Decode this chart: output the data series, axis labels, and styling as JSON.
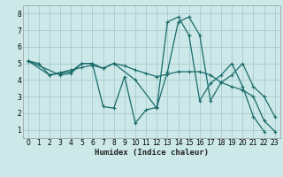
{
  "xlabel": "Humidex (Indice chaleur)",
  "background_color": "#cce8e8",
  "grid_color": "#aacccc",
  "line_color": "#1a6b6b",
  "xlim": [
    -0.5,
    23.5
  ],
  "ylim": [
    0.5,
    8.5
  ],
  "xticks": [
    0,
    1,
    2,
    3,
    4,
    5,
    6,
    7,
    8,
    9,
    10,
    11,
    12,
    13,
    14,
    15,
    16,
    17,
    18,
    19,
    20,
    21,
    22,
    23
  ],
  "yticks": [
    1,
    2,
    3,
    4,
    5,
    6,
    7,
    8
  ],
  "line1": [
    [
      0,
      5.15
    ],
    [
      1,
      5.0
    ],
    [
      2,
      4.3
    ],
    [
      3,
      4.4
    ],
    [
      4,
      4.5
    ],
    [
      5,
      5.0
    ],
    [
      6,
      5.0
    ],
    [
      7,
      2.4
    ],
    [
      8,
      2.3
    ],
    [
      9,
      4.2
    ],
    [
      10,
      1.4
    ],
    [
      11,
      2.2
    ],
    [
      12,
      2.35
    ],
    [
      13,
      4.5
    ],
    [
      14,
      7.5
    ],
    [
      15,
      7.8
    ],
    [
      16,
      6.7
    ],
    [
      17,
      2.75
    ],
    [
      18,
      3.85
    ],
    [
      19,
      4.3
    ],
    [
      20,
      5.0
    ],
    [
      21,
      3.6
    ],
    [
      22,
      3.0
    ],
    [
      23,
      1.8
    ]
  ],
  "line2": [
    [
      0,
      5.15
    ],
    [
      2,
      4.3
    ],
    [
      3,
      4.45
    ],
    [
      4,
      4.6
    ],
    [
      5,
      4.75
    ],
    [
      6,
      4.9
    ],
    [
      7,
      4.7
    ],
    [
      8,
      5.0
    ],
    [
      9,
      4.85
    ],
    [
      10,
      4.6
    ],
    [
      11,
      4.4
    ],
    [
      12,
      4.2
    ],
    [
      13,
      4.35
    ],
    [
      14,
      4.5
    ],
    [
      15,
      4.5
    ],
    [
      16,
      4.5
    ],
    [
      17,
      4.3
    ],
    [
      18,
      3.85
    ],
    [
      19,
      3.6
    ],
    [
      20,
      3.4
    ],
    [
      21,
      3.0
    ],
    [
      22,
      1.55
    ],
    [
      23,
      0.9
    ]
  ],
  "line3": [
    [
      0,
      5.15
    ],
    [
      3,
      4.3
    ],
    [
      4,
      4.4
    ],
    [
      5,
      5.0
    ],
    [
      6,
      5.0
    ],
    [
      7,
      4.7
    ],
    [
      8,
      5.0
    ],
    [
      10,
      4.0
    ],
    [
      12,
      2.3
    ],
    [
      13,
      7.5
    ],
    [
      14,
      7.8
    ],
    [
      15,
      6.7
    ],
    [
      16,
      2.75
    ],
    [
      17,
      3.8
    ],
    [
      18,
      4.3
    ],
    [
      19,
      5.0
    ],
    [
      20,
      3.6
    ],
    [
      21,
      1.8
    ],
    [
      22,
      0.9
    ]
  ]
}
